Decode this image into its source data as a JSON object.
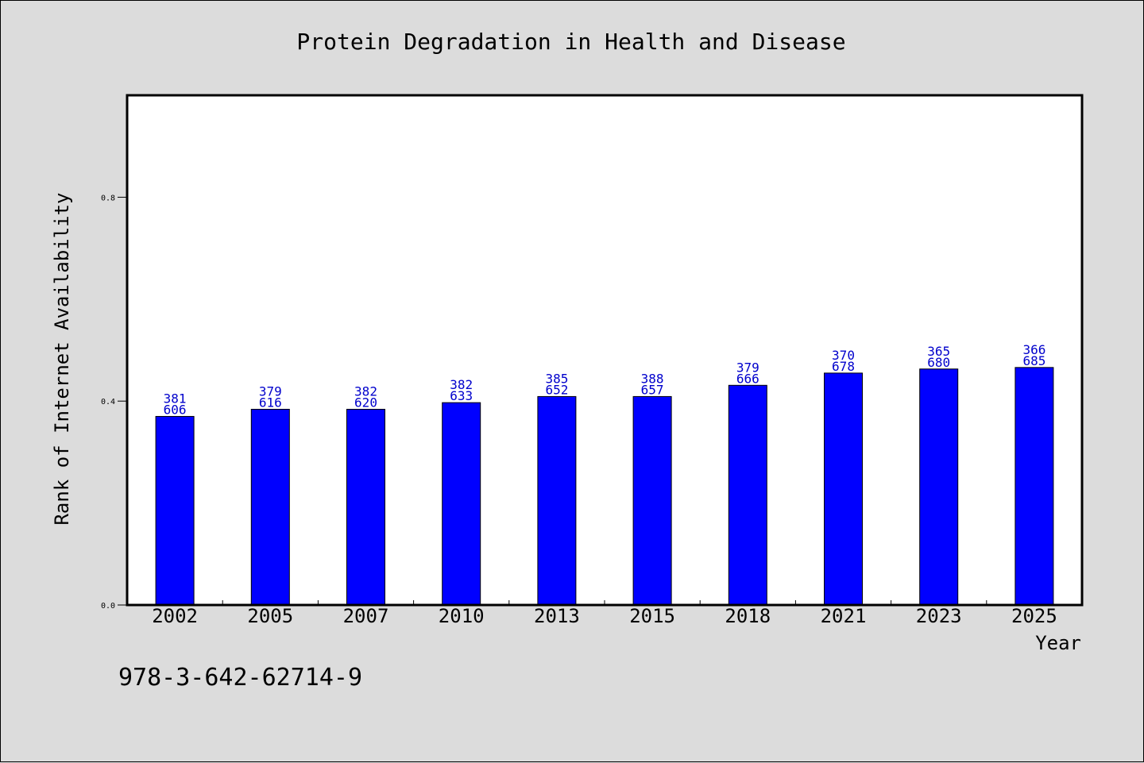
{
  "chart_data": {
    "type": "bar",
    "title": "Protein Degradation in Health and Disease",
    "xlabel": "Year",
    "ylabel": "Rank of Internet Availability",
    "categories": [
      "2002",
      "2005",
      "2007",
      "2010",
      "2013",
      "2015",
      "2018",
      "2021",
      "2023",
      "2025"
    ],
    "values": [
      0.37,
      0.384,
      0.384,
      0.397,
      0.409,
      0.409,
      0.431,
      0.455,
      0.463,
      0.466
    ],
    "data_labels": [
      [
        "381",
        "606"
      ],
      [
        "379",
        "616"
      ],
      [
        "382",
        "620"
      ],
      [
        "382",
        "633"
      ],
      [
        "385",
        "652"
      ],
      [
        "388",
        "657"
      ],
      [
        "379",
        "666"
      ],
      [
        "370",
        "678"
      ],
      [
        "365",
        "680"
      ],
      [
        "366",
        "685"
      ]
    ],
    "ylim": [
      0,
      1.0
    ],
    "yticks": [
      0.0,
      0.4,
      0.8
    ],
    "ytick_labels": [
      "0.0",
      "0.4",
      "0.8"
    ],
    "grid": false,
    "colors": {
      "bar": "#0000ff",
      "data_label": "#0000cc",
      "background": "#dcdcdc",
      "plot_area": "#ffffff"
    }
  },
  "footer_text": "978-3-642-62714-9"
}
